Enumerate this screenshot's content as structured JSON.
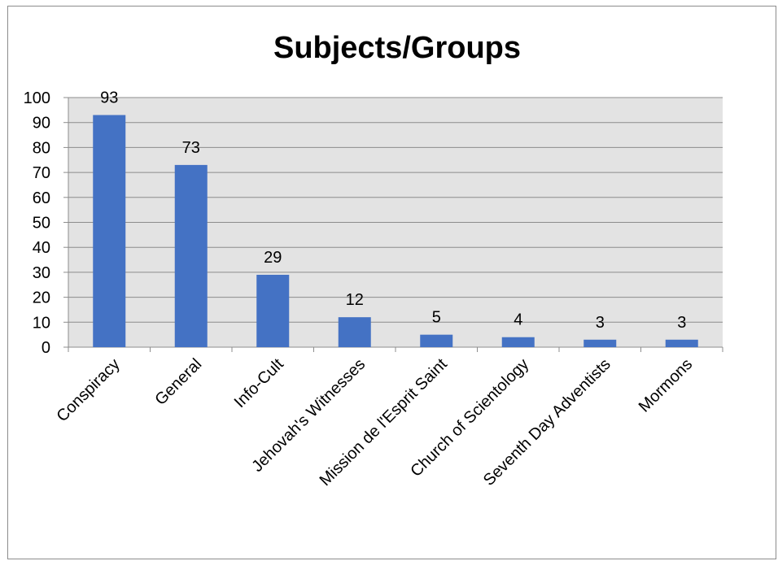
{
  "chart_data": {
    "type": "bar",
    "title": "Subjects/Groups",
    "xlabel": "",
    "ylabel": "",
    "categories": [
      "Conspiracy",
      "General",
      "Info-Cult",
      "Jehovah's Witnesses",
      "Mission de l'Esprit Saint",
      "Church of Scientology",
      "Seventh Day Adventists",
      "Mormons"
    ],
    "values": [
      93,
      73,
      29,
      12,
      5,
      4,
      3,
      3
    ],
    "data_labels": [
      "93",
      "73",
      "29",
      "12",
      "5",
      "4",
      "3",
      "3"
    ],
    "ylim": [
      0,
      100
    ],
    "yticks": [
      0,
      10,
      20,
      30,
      40,
      50,
      60,
      70,
      80,
      90,
      100
    ],
    "grid": true,
    "legend": "none",
    "colors": {
      "bar": "#4472c4",
      "plot_background": "#e3e3e3",
      "gridline": "#8c8c8c",
      "axis": "#8c8c8c",
      "text": "#000000"
    }
  }
}
